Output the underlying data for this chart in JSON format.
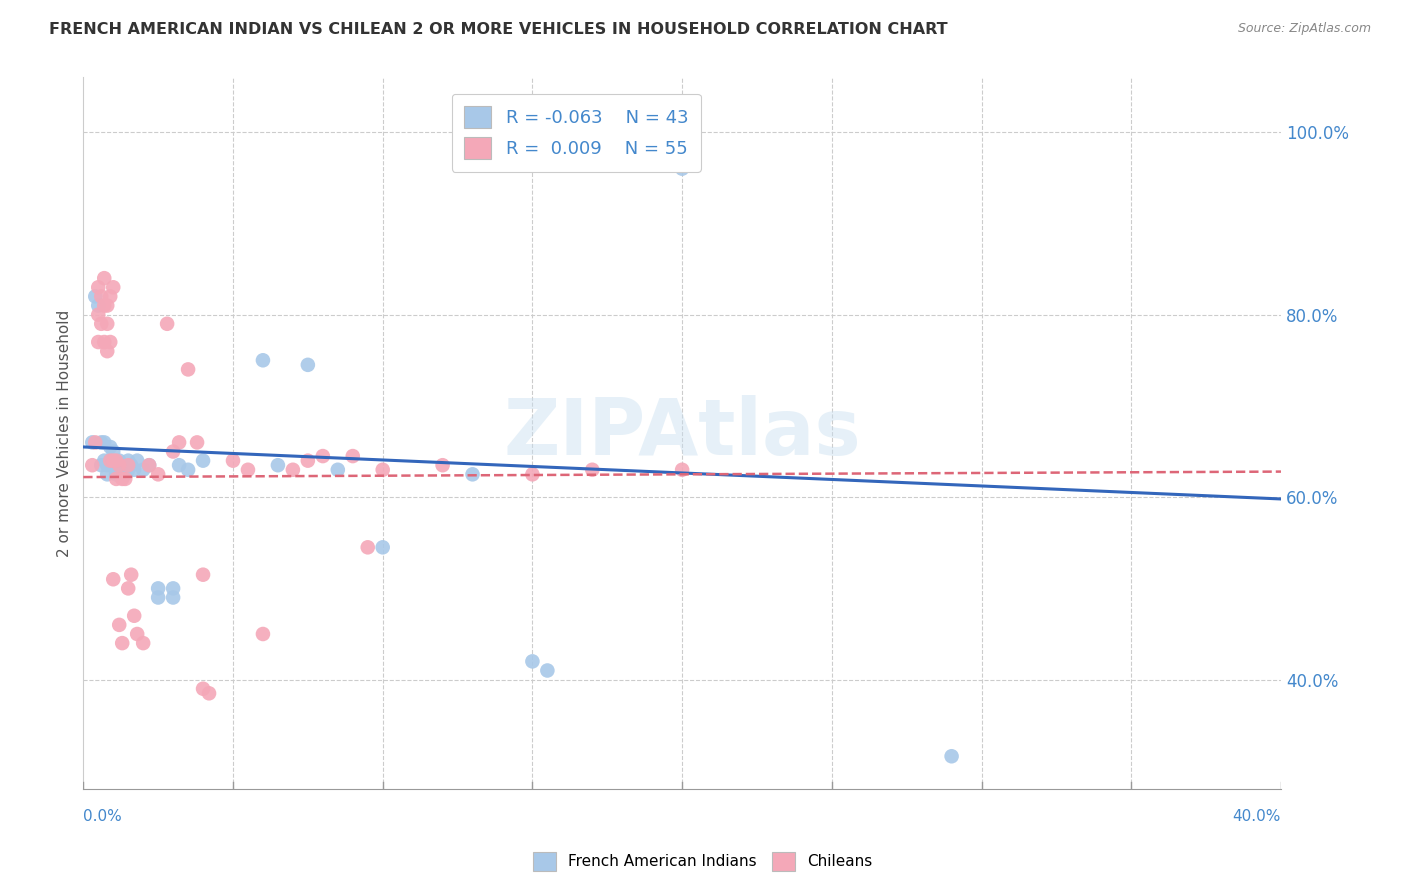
{
  "title": "FRENCH AMERICAN INDIAN VS CHILEAN 2 OR MORE VEHICLES IN HOUSEHOLD CORRELATION CHART",
  "source": "Source: ZipAtlas.com",
  "ylabel": "2 or more Vehicles in Household",
  "yticks": [
    "40.0%",
    "60.0%",
    "80.0%",
    "100.0%"
  ],
  "ytick_vals": [
    0.4,
    0.6,
    0.8,
    1.0
  ],
  "xlim": [
    0.0,
    0.4
  ],
  "ylim": [
    0.28,
    1.06
  ],
  "blue_color": "#a8c8e8",
  "pink_color": "#f4a8b8",
  "blue_line_color": "#3366bb",
  "pink_line_color": "#dd6677",
  "blue_line": [
    [
      0.0,
      0.655
    ],
    [
      0.4,
      0.598
    ]
  ],
  "pink_line": [
    [
      0.0,
      0.622
    ],
    [
      0.4,
      0.628
    ]
  ],
  "blue_scatter": [
    [
      0.003,
      0.66
    ],
    [
      0.004,
      0.82
    ],
    [
      0.005,
      0.81
    ],
    [
      0.006,
      0.635
    ],
    [
      0.006,
      0.66
    ],
    [
      0.007,
      0.64
    ],
    [
      0.007,
      0.66
    ],
    [
      0.008,
      0.635
    ],
    [
      0.008,
      0.625
    ],
    [
      0.009,
      0.655
    ],
    [
      0.009,
      0.64
    ],
    [
      0.01,
      0.635
    ],
    [
      0.01,
      0.65
    ],
    [
      0.011,
      0.635
    ],
    [
      0.011,
      0.625
    ],
    [
      0.012,
      0.64
    ],
    [
      0.012,
      0.63
    ],
    [
      0.013,
      0.635
    ],
    [
      0.014,
      0.625
    ],
    [
      0.015,
      0.64
    ],
    [
      0.015,
      0.63
    ],
    [
      0.016,
      0.635
    ],
    [
      0.017,
      0.63
    ],
    [
      0.018,
      0.64
    ],
    [
      0.02,
      0.63
    ],
    [
      0.022,
      0.635
    ],
    [
      0.025,
      0.5
    ],
    [
      0.025,
      0.49
    ],
    [
      0.03,
      0.5
    ],
    [
      0.03,
      0.49
    ],
    [
      0.032,
      0.635
    ],
    [
      0.035,
      0.63
    ],
    [
      0.04,
      0.64
    ],
    [
      0.06,
      0.75
    ],
    [
      0.065,
      0.635
    ],
    [
      0.075,
      0.745
    ],
    [
      0.085,
      0.63
    ],
    [
      0.1,
      0.545
    ],
    [
      0.13,
      0.625
    ],
    [
      0.15,
      0.42
    ],
    [
      0.155,
      0.41
    ],
    [
      0.2,
      0.96
    ],
    [
      0.29,
      0.316
    ]
  ],
  "pink_scatter": [
    [
      0.003,
      0.635
    ],
    [
      0.004,
      0.66
    ],
    [
      0.005,
      0.83
    ],
    [
      0.005,
      0.8
    ],
    [
      0.005,
      0.77
    ],
    [
      0.006,
      0.82
    ],
    [
      0.006,
      0.79
    ],
    [
      0.007,
      0.84
    ],
    [
      0.007,
      0.81
    ],
    [
      0.007,
      0.77
    ],
    [
      0.008,
      0.81
    ],
    [
      0.008,
      0.79
    ],
    [
      0.008,
      0.76
    ],
    [
      0.009,
      0.82
    ],
    [
      0.009,
      0.77
    ],
    [
      0.009,
      0.64
    ],
    [
      0.01,
      0.83
    ],
    [
      0.01,
      0.64
    ],
    [
      0.01,
      0.51
    ],
    [
      0.011,
      0.64
    ],
    [
      0.011,
      0.62
    ],
    [
      0.012,
      0.635
    ],
    [
      0.012,
      0.46
    ],
    [
      0.013,
      0.62
    ],
    [
      0.013,
      0.44
    ],
    [
      0.014,
      0.62
    ],
    [
      0.015,
      0.635
    ],
    [
      0.015,
      0.5
    ],
    [
      0.016,
      0.515
    ],
    [
      0.017,
      0.47
    ],
    [
      0.018,
      0.45
    ],
    [
      0.02,
      0.44
    ],
    [
      0.022,
      0.635
    ],
    [
      0.025,
      0.625
    ],
    [
      0.028,
      0.79
    ],
    [
      0.03,
      0.65
    ],
    [
      0.032,
      0.66
    ],
    [
      0.035,
      0.74
    ],
    [
      0.038,
      0.66
    ],
    [
      0.04,
      0.515
    ],
    [
      0.04,
      0.39
    ],
    [
      0.042,
      0.385
    ],
    [
      0.05,
      0.64
    ],
    [
      0.055,
      0.63
    ],
    [
      0.06,
      0.45
    ],
    [
      0.07,
      0.63
    ],
    [
      0.075,
      0.64
    ],
    [
      0.08,
      0.645
    ],
    [
      0.09,
      0.645
    ],
    [
      0.095,
      0.545
    ],
    [
      0.1,
      0.63
    ],
    [
      0.12,
      0.635
    ],
    [
      0.15,
      0.625
    ],
    [
      0.17,
      0.63
    ],
    [
      0.2,
      0.63
    ]
  ]
}
